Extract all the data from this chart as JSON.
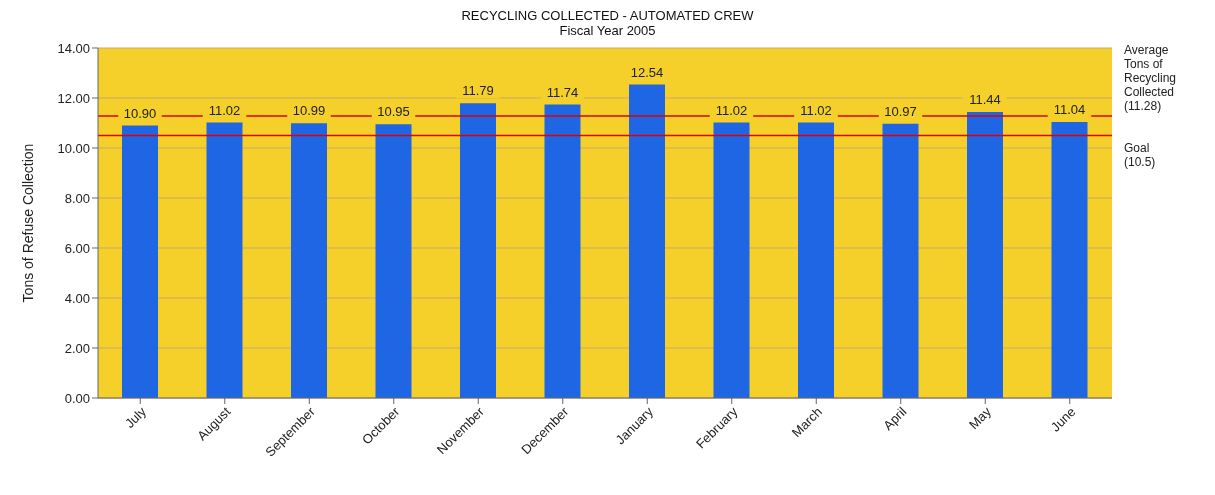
{
  "chart_data": {
    "type": "bar",
    "title": "RECYCLING COLLECTED - AUTOMATED CREW",
    "subtitle": "Fiscal Year 2005",
    "ylabel": "Tons of Refuse Collection",
    "categories": [
      "July",
      "August",
      "September",
      "October",
      "November",
      "December",
      "January",
      "February",
      "March",
      "April",
      "May",
      "June"
    ],
    "values": [
      10.9,
      11.02,
      10.99,
      10.95,
      11.79,
      11.74,
      12.54,
      11.02,
      11.02,
      10.97,
      11.44,
      11.04
    ],
    "value_labels": [
      "10.90",
      "11.02",
      "10.99",
      "10.95",
      "11.79",
      "11.74",
      "12.54",
      "11.02",
      "11.02",
      "10.97",
      "11.44",
      "11.04"
    ],
    "color": "#1f66e5",
    "ylim": [
      0,
      14
    ],
    "yticks": [
      {
        "value": 0,
        "label": "0.00"
      },
      {
        "value": 2,
        "label": "2.00"
      },
      {
        "value": 4,
        "label": "4.00"
      },
      {
        "value": 6,
        "label": "6.00"
      },
      {
        "value": 8,
        "label": "8.00"
      },
      {
        "value": 10,
        "label": "10.00"
      },
      {
        "value": 12,
        "label": "12.00"
      },
      {
        "value": 14,
        "label": "14.00"
      }
    ],
    "grid": "y",
    "ref_lines": [
      {
        "axis": "y",
        "value": 11.28,
        "label": "Average Tons of Recycling Collected (11.28)",
        "color": "#e00000"
      },
      {
        "axis": "y",
        "value": 10.5,
        "label": "Goal (10.5)",
        "color": "#e00000"
      }
    ]
  }
}
